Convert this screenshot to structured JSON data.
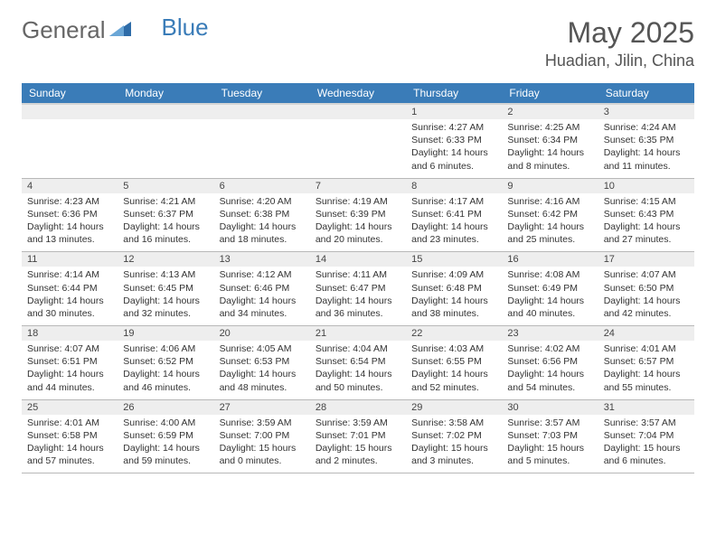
{
  "logo": {
    "text1": "General",
    "text2": "Blue"
  },
  "title": "May 2025",
  "location": "Huadian, Jilin, China",
  "colors": {
    "header_bg": "#3a7cb8",
    "header_text": "#ffffff",
    "daynum_bg": "#eeeeee",
    "border": "#b8b8b8",
    "body_text": "#333333",
    "title_text": "#555555"
  },
  "weekdays": [
    "Sunday",
    "Monday",
    "Tuesday",
    "Wednesday",
    "Thursday",
    "Friday",
    "Saturday"
  ],
  "weeks": [
    {
      "nums": [
        "",
        "",
        "",
        "",
        "1",
        "2",
        "3"
      ],
      "details": [
        "",
        "",
        "",
        "",
        "Sunrise: 4:27 AM\nSunset: 6:33 PM\nDaylight: 14 hours and 6 minutes.",
        "Sunrise: 4:25 AM\nSunset: 6:34 PM\nDaylight: 14 hours and 8 minutes.",
        "Sunrise: 4:24 AM\nSunset: 6:35 PM\nDaylight: 14 hours and 11 minutes."
      ]
    },
    {
      "nums": [
        "4",
        "5",
        "6",
        "7",
        "8",
        "9",
        "10"
      ],
      "details": [
        "Sunrise: 4:23 AM\nSunset: 6:36 PM\nDaylight: 14 hours and 13 minutes.",
        "Sunrise: 4:21 AM\nSunset: 6:37 PM\nDaylight: 14 hours and 16 minutes.",
        "Sunrise: 4:20 AM\nSunset: 6:38 PM\nDaylight: 14 hours and 18 minutes.",
        "Sunrise: 4:19 AM\nSunset: 6:39 PM\nDaylight: 14 hours and 20 minutes.",
        "Sunrise: 4:17 AM\nSunset: 6:41 PM\nDaylight: 14 hours and 23 minutes.",
        "Sunrise: 4:16 AM\nSunset: 6:42 PM\nDaylight: 14 hours and 25 minutes.",
        "Sunrise: 4:15 AM\nSunset: 6:43 PM\nDaylight: 14 hours and 27 minutes."
      ]
    },
    {
      "nums": [
        "11",
        "12",
        "13",
        "14",
        "15",
        "16",
        "17"
      ],
      "details": [
        "Sunrise: 4:14 AM\nSunset: 6:44 PM\nDaylight: 14 hours and 30 minutes.",
        "Sunrise: 4:13 AM\nSunset: 6:45 PM\nDaylight: 14 hours and 32 minutes.",
        "Sunrise: 4:12 AM\nSunset: 6:46 PM\nDaylight: 14 hours and 34 minutes.",
        "Sunrise: 4:11 AM\nSunset: 6:47 PM\nDaylight: 14 hours and 36 minutes.",
        "Sunrise: 4:09 AM\nSunset: 6:48 PM\nDaylight: 14 hours and 38 minutes.",
        "Sunrise: 4:08 AM\nSunset: 6:49 PM\nDaylight: 14 hours and 40 minutes.",
        "Sunrise: 4:07 AM\nSunset: 6:50 PM\nDaylight: 14 hours and 42 minutes."
      ]
    },
    {
      "nums": [
        "18",
        "19",
        "20",
        "21",
        "22",
        "23",
        "24"
      ],
      "details": [
        "Sunrise: 4:07 AM\nSunset: 6:51 PM\nDaylight: 14 hours and 44 minutes.",
        "Sunrise: 4:06 AM\nSunset: 6:52 PM\nDaylight: 14 hours and 46 minutes.",
        "Sunrise: 4:05 AM\nSunset: 6:53 PM\nDaylight: 14 hours and 48 minutes.",
        "Sunrise: 4:04 AM\nSunset: 6:54 PM\nDaylight: 14 hours and 50 minutes.",
        "Sunrise: 4:03 AM\nSunset: 6:55 PM\nDaylight: 14 hours and 52 minutes.",
        "Sunrise: 4:02 AM\nSunset: 6:56 PM\nDaylight: 14 hours and 54 minutes.",
        "Sunrise: 4:01 AM\nSunset: 6:57 PM\nDaylight: 14 hours and 55 minutes."
      ]
    },
    {
      "nums": [
        "25",
        "26",
        "27",
        "28",
        "29",
        "30",
        "31"
      ],
      "details": [
        "Sunrise: 4:01 AM\nSunset: 6:58 PM\nDaylight: 14 hours and 57 minutes.",
        "Sunrise: 4:00 AM\nSunset: 6:59 PM\nDaylight: 14 hours and 59 minutes.",
        "Sunrise: 3:59 AM\nSunset: 7:00 PM\nDaylight: 15 hours and 0 minutes.",
        "Sunrise: 3:59 AM\nSunset: 7:01 PM\nDaylight: 15 hours and 2 minutes.",
        "Sunrise: 3:58 AM\nSunset: 7:02 PM\nDaylight: 15 hours and 3 minutes.",
        "Sunrise: 3:57 AM\nSunset: 7:03 PM\nDaylight: 15 hours and 5 minutes.",
        "Sunrise: 3:57 AM\nSunset: 7:04 PM\nDaylight: 15 hours and 6 minutes."
      ]
    }
  ]
}
